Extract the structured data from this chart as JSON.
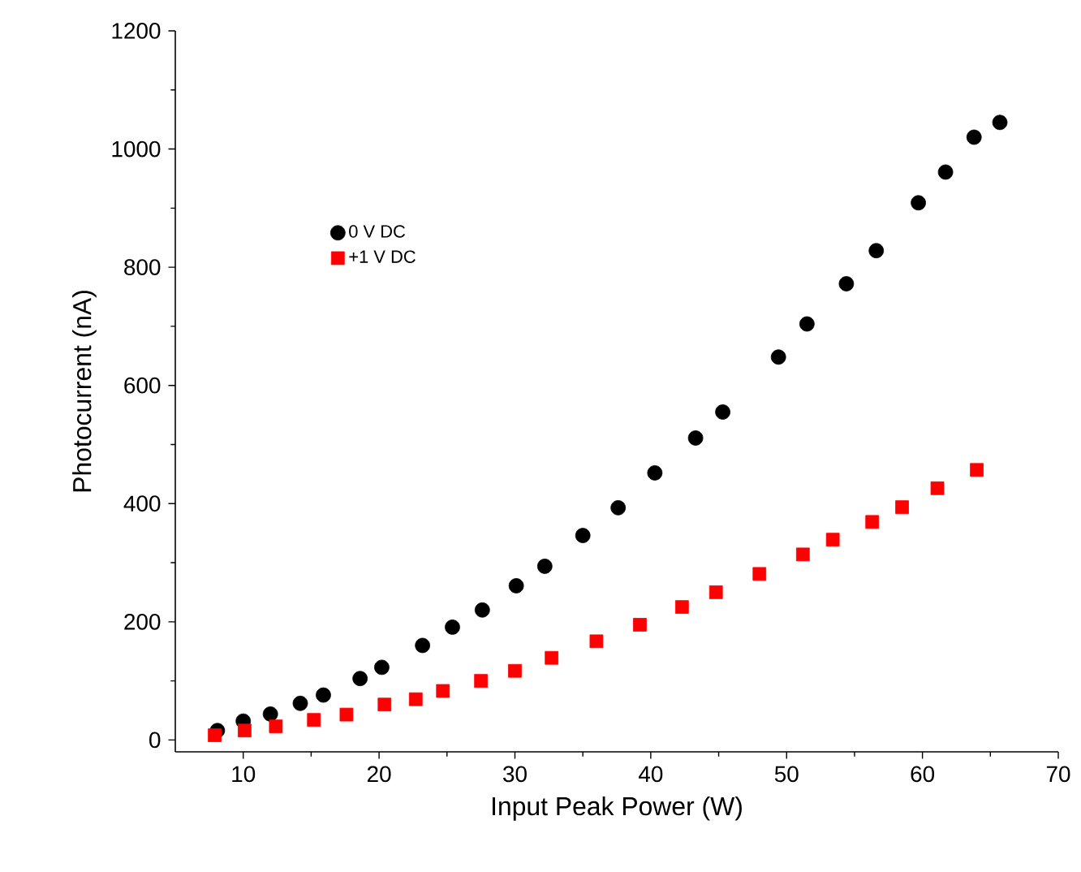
{
  "chart_data": {
    "type": "scatter",
    "xlabel": "Input Peak Power (W)",
    "ylabel": "Photocurrent (nA)",
    "xlim": [
      5,
      70
    ],
    "xticks": [
      10,
      20,
      30,
      40,
      50,
      60,
      70
    ],
    "ylim": [
      -20,
      1200
    ],
    "yticks": [
      0,
      200,
      400,
      600,
      800,
      1000,
      1200
    ],
    "grid": false,
    "legend": "top left",
    "series": [
      {
        "name": "0 V DC",
        "color": "#000000",
        "marker": "circle",
        "x": [
          8.1,
          10.0,
          12.0,
          14.2,
          15.9,
          18.6,
          20.2,
          23.2,
          25.4,
          27.6,
          30.1,
          32.2,
          35.0,
          37.6,
          40.3,
          43.3,
          45.3,
          49.4,
          51.5,
          54.4,
          56.6,
          59.7,
          61.7,
          63.8,
          65.7
        ],
        "values": [
          16,
          32,
          44,
          62,
          76,
          104,
          123,
          160,
          191,
          220,
          261,
          294,
          346,
          393,
          452,
          511,
          555,
          648,
          704,
          772,
          828,
          909,
          961,
          1020,
          1045
        ]
      },
      {
        "name": "+1 V DC",
        "color": "#ff0000",
        "marker": "square",
        "x": [
          7.9,
          10.1,
          12.4,
          15.2,
          17.6,
          20.4,
          22.7,
          24.7,
          27.5,
          30.0,
          32.7,
          36.0,
          39.2,
          42.3,
          44.8,
          48.0,
          51.2,
          53.4,
          56.3,
          58.5,
          61.1,
          64.0
        ],
        "values": [
          8,
          16,
          23,
          34,
          43,
          60,
          69,
          83,
          100,
          117,
          139,
          167,
          195,
          225,
          250,
          281,
          314,
          339,
          369,
          394,
          426,
          457
        ]
      }
    ]
  }
}
